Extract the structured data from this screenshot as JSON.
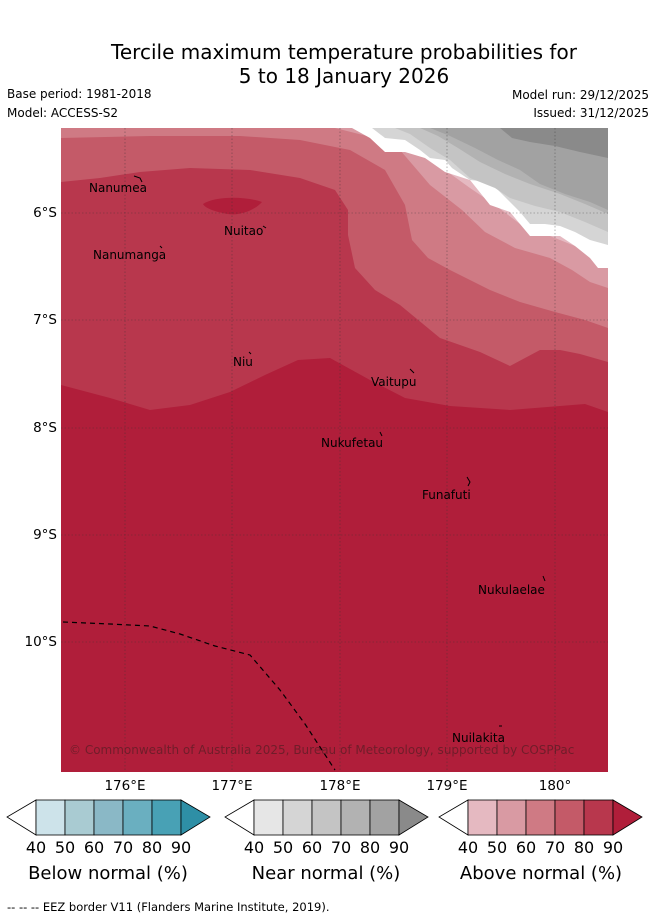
{
  "title_line1": "Tercile maximum temperature probabilities for",
  "title_line2": "5 to 18 January 2026",
  "meta": {
    "base_period": "Base period: 1981-2018",
    "model": "Model: ACCESS-S2",
    "model_run": "Model run: 29/12/2025",
    "issued": "Issued: 31/12/2025"
  },
  "axes": {
    "lat_labels": [
      "6°S",
      "7°S",
      "8°S",
      "9°S",
      "10°S"
    ],
    "lon_labels": [
      "176°E",
      "177°E",
      "178°E",
      "179°E",
      "180°"
    ]
  },
  "places": [
    {
      "name": "Nanumea"
    },
    {
      "name": "Nuitao"
    },
    {
      "name": "Nanumanga"
    },
    {
      "name": "Niu"
    },
    {
      "name": "Vaitupu"
    },
    {
      "name": "Nukufetau"
    },
    {
      "name": "Funafuti"
    },
    {
      "name": "Nukulaelae"
    },
    {
      "name": "Nuilakita"
    }
  ],
  "copyright": "© Commonwealth of Australia 2025, Bureau of Meteorology, supported by COSPPac",
  "colorbars": [
    {
      "title": "Below normal (%)",
      "ticks": [
        "40",
        "50",
        "60",
        "70",
        "80",
        "90"
      ],
      "colors": [
        "#ffffff",
        "#cde3ea",
        "#a9cbd2",
        "#8ab8c6",
        "#6aafc0",
        "#48a1b5",
        "#2e8fa6"
      ]
    },
    {
      "title": "Near normal (%)",
      "ticks": [
        "40",
        "50",
        "60",
        "70",
        "80",
        "90"
      ],
      "colors": [
        "#ffffff",
        "#e6e6e6",
        "#d5d5d5",
        "#c4c4c4",
        "#b2b2b2",
        "#a2a2a2",
        "#8a8a8a"
      ]
    },
    {
      "title": "Above normal (%)",
      "ticks": [
        "40",
        "50",
        "60",
        "70",
        "80",
        "90"
      ],
      "colors": [
        "#ffffff",
        "#e5b9c1",
        "#d99aa3",
        "#cf7a84",
        "#c45a68",
        "#b8374d",
        "#b01e3a"
      ]
    }
  ],
  "footnote": "-- -- -- EEZ border V11 (Flanders Marine Institute, 2019)."
}
